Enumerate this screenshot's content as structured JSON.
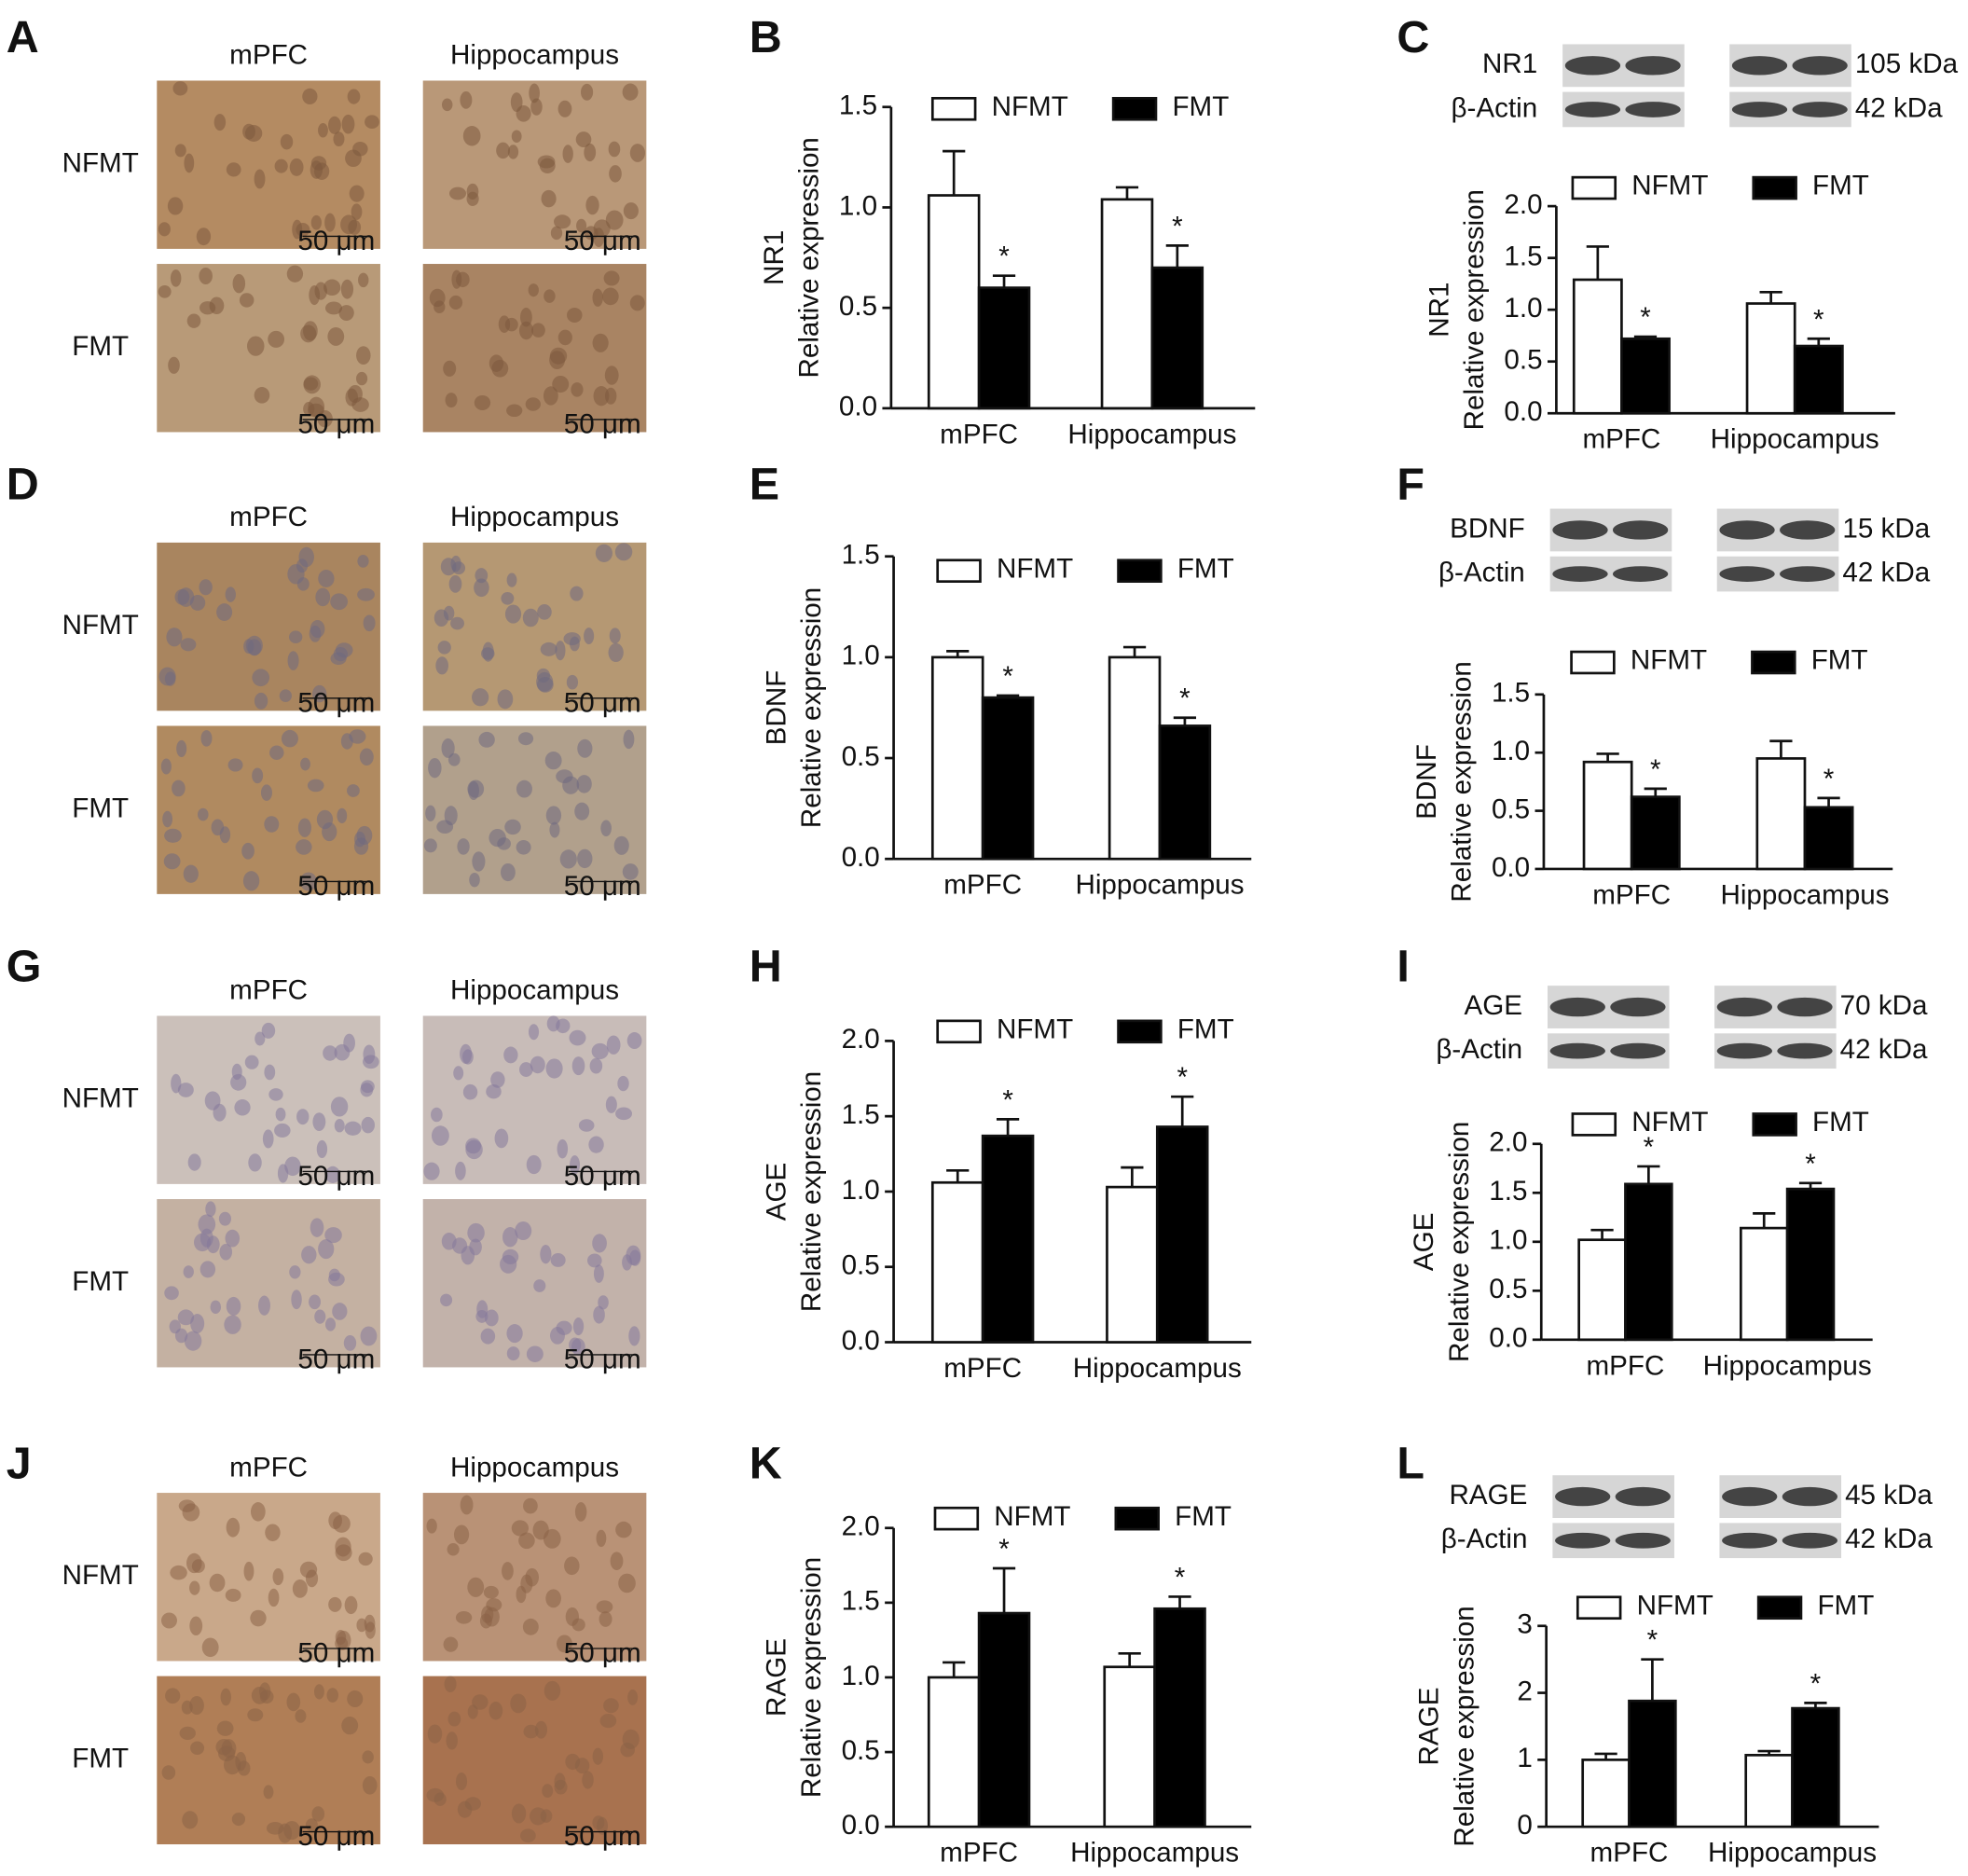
{
  "micrographs": [
    {
      "panel": "A",
      "columns": [
        "mPFC",
        "Hippocampus"
      ],
      "rows": [
        "NFMT",
        "FMT"
      ],
      "scale_bar": "50 μm"
    },
    {
      "panel": "D",
      "columns": [
        "mPFC",
        "Hippocampus"
      ],
      "rows": [
        "NFMT",
        "FMT"
      ],
      "scale_bar": "50 μm"
    },
    {
      "panel": "G",
      "columns": [
        "mPFC",
        "Hippocampus"
      ],
      "rows": [
        "NFMT",
        "FMT"
      ],
      "scale_bar": "50 μm"
    },
    {
      "panel": "J",
      "columns": [
        "mPFC",
        "Hippocampus"
      ],
      "rows": [
        "NFMT",
        "FMT"
      ],
      "scale_bar": "50 μm"
    }
  ],
  "chart_data": [
    {
      "type": "bar",
      "panel": "B",
      "ylabel_protein": "NR1",
      "ylabel": "Relative expression",
      "categories": [
        "mPFC",
        "Hippocampus"
      ],
      "series": [
        {
          "name": "NFMT",
          "color": "#ffffff",
          "values": [
            1.06,
            1.04
          ],
          "errors": [
            0.22,
            0.06
          ]
        },
        {
          "name": "FMT",
          "color": "#000000",
          "values": [
            0.6,
            0.7
          ],
          "errors": [
            0.06,
            0.11
          ],
          "annotations": [
            "*",
            "*"
          ]
        }
      ],
      "ylim": [
        0,
        1.5
      ],
      "yticks": [
        {
          "value": 0,
          "label": "0.0"
        },
        {
          "value": 0.5,
          "label": "0.5"
        },
        {
          "value": 1,
          "label": "1.0"
        },
        {
          "value": 1.5,
          "label": "1.5"
        }
      ]
    },
    {
      "type": "bar",
      "panel": "C",
      "ylabel_protein": "NR1",
      "ylabel": "Relative expression",
      "categories": [
        "mPFC",
        "Hippocampus"
      ],
      "blot": {
        "protein": "NR1",
        "protein_weight": "105 kDa",
        "control": "β-Actin",
        "control_weight": "42 kDa"
      },
      "series": [
        {
          "name": "NFMT",
          "color": "#ffffff",
          "values": [
            1.29,
            1.06
          ],
          "errors": [
            0.32,
            0.11
          ]
        },
        {
          "name": "FMT",
          "color": "#000000",
          "values": [
            0.72,
            0.65
          ],
          "errors": [
            0.02,
            0.07
          ],
          "annotations": [
            "*",
            "*"
          ]
        }
      ],
      "ylim": [
        0,
        2
      ],
      "yticks": [
        {
          "value": 0,
          "label": "0.0"
        },
        {
          "value": 0.5,
          "label": "0.5"
        },
        {
          "value": 1,
          "label": "1.0"
        },
        {
          "value": 1.5,
          "label": "1.5"
        },
        {
          "value": 2,
          "label": "2.0"
        }
      ]
    },
    {
      "type": "bar",
      "panel": "E",
      "ylabel_protein": "BDNF",
      "ylabel": "Relative expression",
      "categories": [
        "mPFC",
        "Hippocampus"
      ],
      "series": [
        {
          "name": "NFMT",
          "color": "#ffffff",
          "values": [
            1.0,
            1.0
          ],
          "errors": [
            0.03,
            0.05
          ]
        },
        {
          "name": "FMT",
          "color": "#000000",
          "values": [
            0.8,
            0.66
          ],
          "errors": [
            0.01,
            0.04
          ],
          "annotations": [
            "*",
            "*"
          ]
        }
      ],
      "ylim": [
        0,
        1.5
      ],
      "yticks": [
        {
          "value": 0,
          "label": "0.0"
        },
        {
          "value": 0.5,
          "label": "0.5"
        },
        {
          "value": 1,
          "label": "1.0"
        },
        {
          "value": 1.5,
          "label": "1.5"
        }
      ]
    },
    {
      "type": "bar",
      "panel": "F",
      "ylabel_protein": "BDNF",
      "ylabel": "Relative expression",
      "categories": [
        "mPFC",
        "Hippocampus"
      ],
      "blot": {
        "protein": "BDNF",
        "protein_weight": "15 kDa",
        "control": "β-Actin",
        "control_weight": "42 kDa"
      },
      "series": [
        {
          "name": "NFMT",
          "color": "#ffffff",
          "values": [
            0.92,
            0.95
          ],
          "errors": [
            0.07,
            0.15
          ]
        },
        {
          "name": "FMT",
          "color": "#000000",
          "values": [
            0.62,
            0.53
          ],
          "errors": [
            0.07,
            0.08
          ],
          "annotations": [
            "*",
            "*"
          ]
        }
      ],
      "ylim": [
        0,
        1.5
      ],
      "yticks": [
        {
          "value": 0,
          "label": "0.0"
        },
        {
          "value": 0.5,
          "label": "0.5"
        },
        {
          "value": 1,
          "label": "1.0"
        },
        {
          "value": 1.5,
          "label": "1.5"
        }
      ]
    },
    {
      "type": "bar",
      "panel": "H",
      "ylabel_protein": "AGE",
      "ylabel": "Relative expression",
      "categories": [
        "mPFC",
        "Hippocampus"
      ],
      "series": [
        {
          "name": "NFMT",
          "color": "#ffffff",
          "values": [
            1.06,
            1.03
          ],
          "errors": [
            0.08,
            0.13
          ]
        },
        {
          "name": "FMT",
          "color": "#000000",
          "values": [
            1.37,
            1.43
          ],
          "errors": [
            0.11,
            0.2
          ],
          "annotations": [
            "*",
            "*"
          ]
        }
      ],
      "ylim": [
        0,
        2
      ],
      "yticks": [
        {
          "value": 0,
          "label": "0.0"
        },
        {
          "value": 0.5,
          "label": "0.5"
        },
        {
          "value": 1,
          "label": "1.0"
        },
        {
          "value": 1.5,
          "label": "1.5"
        },
        {
          "value": 2,
          "label": "2.0"
        }
      ]
    },
    {
      "type": "bar",
      "panel": "I",
      "ylabel_protein": "AGE",
      "ylabel": "Relative expression",
      "categories": [
        "mPFC",
        "Hippocampus"
      ],
      "blot": {
        "protein": "AGE",
        "protein_weight": "70 kDa",
        "control": "β-Actin",
        "control_weight": "42 kDa"
      },
      "series": [
        {
          "name": "NFMT",
          "color": "#ffffff",
          "values": [
            1.02,
            1.14
          ],
          "errors": [
            0.1,
            0.15
          ]
        },
        {
          "name": "FMT",
          "color": "#000000",
          "values": [
            1.59,
            1.54
          ],
          "errors": [
            0.18,
            0.06
          ],
          "annotations": [
            "*",
            "*"
          ]
        }
      ],
      "ylim": [
        0,
        2
      ],
      "yticks": [
        {
          "value": 0,
          "label": "0.0"
        },
        {
          "value": 0.5,
          "label": "0.5"
        },
        {
          "value": 1,
          "label": "1.0"
        },
        {
          "value": 1.5,
          "label": "1.5"
        },
        {
          "value": 2,
          "label": "2.0"
        }
      ]
    },
    {
      "type": "bar",
      "panel": "K",
      "ylabel_protein": "RAGE",
      "ylabel": "Relative expression",
      "categories": [
        "mPFC",
        "Hippocampus"
      ],
      "series": [
        {
          "name": "NFMT",
          "color": "#ffffff",
          "values": [
            1.0,
            1.07
          ],
          "errors": [
            0.1,
            0.09
          ]
        },
        {
          "name": "FMT",
          "color": "#000000",
          "values": [
            1.43,
            1.46
          ],
          "errors": [
            0.3,
            0.08
          ],
          "annotations": [
            "*",
            "*"
          ]
        }
      ],
      "ylim": [
        0,
        2
      ],
      "yticks": [
        {
          "value": 0,
          "label": "0.0"
        },
        {
          "value": 0.5,
          "label": "0.5"
        },
        {
          "value": 1,
          "label": "1.0"
        },
        {
          "value": 1.5,
          "label": "1.5"
        },
        {
          "value": 2,
          "label": "2.0"
        }
      ]
    },
    {
      "type": "bar",
      "panel": "L",
      "ylabel_protein": "RAGE",
      "ylabel": "Relative expression",
      "categories": [
        "mPFC",
        "Hippocampus"
      ],
      "blot": {
        "protein": "RAGE",
        "protein_weight": "45 kDa",
        "control": "β-Actin",
        "control_weight": "42 kDa"
      },
      "series": [
        {
          "name": "NFMT",
          "color": "#ffffff",
          "values": [
            1.0,
            1.07
          ],
          "errors": [
            0.09,
            0.06
          ]
        },
        {
          "name": "FMT",
          "color": "#000000",
          "values": [
            1.88,
            1.77
          ],
          "errors": [
            0.62,
            0.08
          ],
          "annotations": [
            "*",
            "*"
          ]
        }
      ],
      "ylim": [
        0,
        3
      ],
      "yticks": [
        0,
        1,
        2,
        3
      ]
    }
  ]
}
